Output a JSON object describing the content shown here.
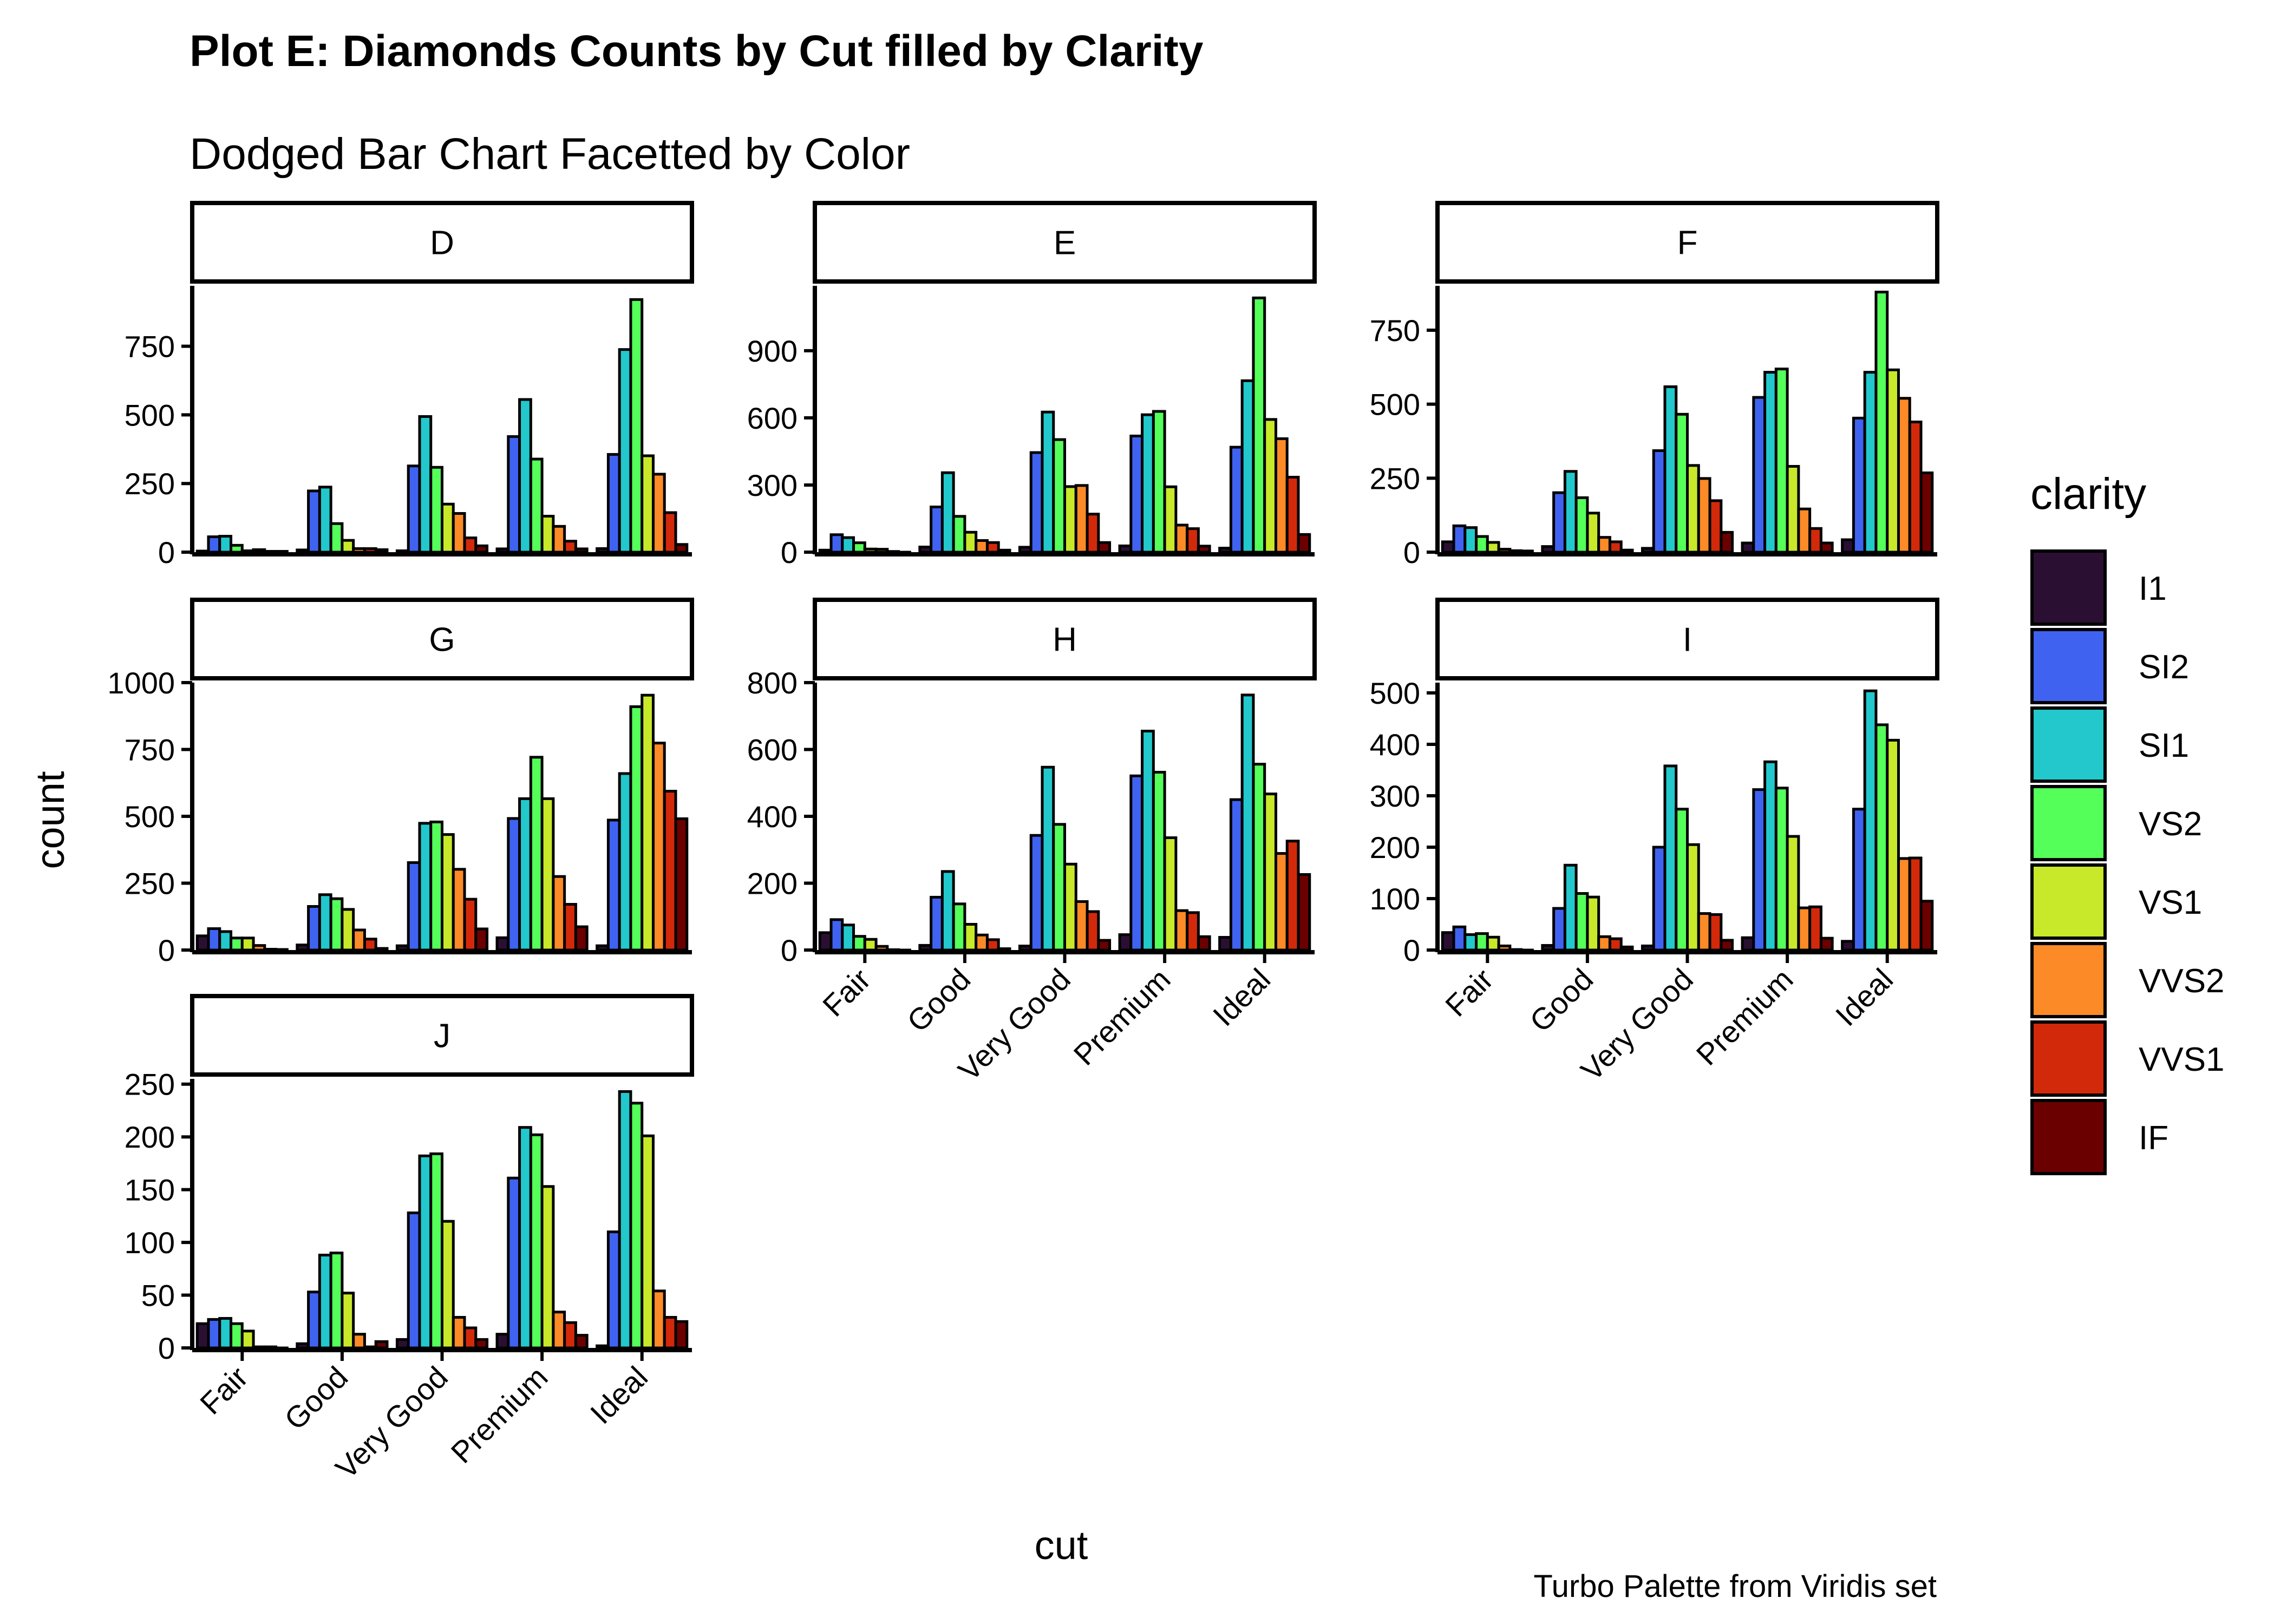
{
  "title": "Plot E: Diamonds Counts by Cut filled by Clarity",
  "subtitle": "Dodged Bar Chart Facetted by Color",
  "caption": "Turbo Palette from Viridis set",
  "chart_data": {
    "type": "bar",
    "xlabel": "cut",
    "ylabel": "count",
    "categories": [
      "Fair",
      "Good",
      "Very Good",
      "Premium",
      "Ideal"
    ],
    "legend": {
      "title": "clarity",
      "position": "right",
      "items": [
        "I1",
        "SI2",
        "SI1",
        "VS2",
        "VS1",
        "VVS2",
        "VVS1",
        "IF"
      ],
      "colors": [
        "#2b0f33",
        "#3f63f0",
        "#22c8cc",
        "#55ff5a",
        "#c8e82a",
        "#fb8a27",
        "#d2290b",
        "#6b0000"
      ]
    },
    "grid": false,
    "facets": [
      {
        "label": "D",
        "ylim": [
          0,
          970
        ],
        "yticks": [
          0,
          250,
          500,
          750
        ],
        "series": [
          [
            4,
            56,
            58,
            25,
            5,
            9,
            3,
            3
          ],
          [
            8,
            223,
            237,
            104,
            43,
            13,
            13,
            9
          ],
          [
            5,
            314,
            494,
            309,
            175,
            141,
            52,
            23
          ],
          [
            12,
            421,
            556,
            339,
            131,
            94,
            40,
            12
          ],
          [
            13,
            356,
            738,
            920,
            351,
            284,
            144,
            28
          ]
        ]
      },
      {
        "label": "E",
        "ylim": [
          0,
          1190
        ],
        "yticks": [
          0,
          300,
          600,
          900
        ],
        "series": [
          [
            9,
            78,
            65,
            42,
            14,
            13,
            3,
            0
          ],
          [
            23,
            202,
            355,
            160,
            89,
            52,
            43,
            9
          ],
          [
            22,
            445,
            626,
            503,
            293,
            298,
            170,
            43
          ],
          [
            28,
            519,
            614,
            629,
            292,
            121,
            105,
            27
          ],
          [
            18,
            469,
            766,
            1136,
            593,
            507,
            335,
            79
          ]
        ]
      },
      {
        "label": "F",
        "ylim": [
          0,
          900
        ],
        "yticks": [
          0,
          250,
          500,
          750
        ],
        "series": [
          [
            35,
            89,
            83,
            53,
            33,
            10,
            5,
            4
          ],
          [
            19,
            201,
            273,
            184,
            132,
            50,
            35,
            7
          ],
          [
            13,
            343,
            559,
            466,
            293,
            249,
            174,
            67
          ],
          [
            31,
            523,
            608,
            619,
            290,
            146,
            80,
            31
          ],
          [
            42,
            453,
            608,
            879,
            616,
            520,
            440,
            268
          ]
        ]
      },
      {
        "label": "G",
        "ylim": [
          0,
          1000
        ],
        "yticks": [
          0,
          250,
          500,
          750,
          1000
        ],
        "series": [
          [
            53,
            80,
            69,
            45,
            45,
            17,
            3,
            2
          ],
          [
            19,
            163,
            207,
            192,
            152,
            75,
            41,
            6
          ],
          [
            16,
            327,
            474,
            479,
            432,
            302,
            190,
            79
          ],
          [
            46,
            492,
            566,
            721,
            566,
            275,
            171,
            87
          ],
          [
            16,
            486,
            660,
            910,
            953,
            774,
            594,
            491
          ]
        ]
      },
      {
        "label": "H",
        "ylim": [
          0,
          800
        ],
        "yticks": [
          0,
          200,
          400,
          600,
          800
        ],
        "series": [
          [
            52,
            91,
            75,
            41,
            32,
            11,
            1,
            0
          ],
          [
            14,
            158,
            235,
            138,
            77,
            45,
            31,
            4
          ],
          [
            12,
            343,
            547,
            376,
            257,
            145,
            115,
            29
          ],
          [
            46,
            521,
            655,
            532,
            336,
            118,
            112,
            40
          ],
          [
            38,
            450,
            763,
            556,
            467,
            289,
            326,
            226
          ]
        ]
      },
      {
        "label": "I",
        "ylim": [
          0,
          520
        ],
        "yticks": [
          0,
          100,
          200,
          300,
          400,
          500
        ],
        "series": [
          [
            34,
            45,
            30,
            32,
            25,
            8,
            1,
            0
          ],
          [
            9,
            81,
            165,
            110,
            103,
            26,
            22,
            6
          ],
          [
            8,
            200,
            358,
            274,
            205,
            71,
            69,
            19
          ],
          [
            24,
            312,
            366,
            315,
            221,
            82,
            84,
            23
          ],
          [
            17,
            274,
            504,
            438,
            408,
            178,
            179,
            95
          ]
        ]
      },
      {
        "label": "J",
        "ylim": [
          0,
          255
        ],
        "yticks": [
          0,
          50,
          100,
          150,
          200,
          250
        ],
        "series": [
          [
            23,
            27,
            28,
            23,
            16,
            1,
            1,
            0
          ],
          [
            4,
            53,
            88,
            90,
            52,
            13,
            1,
            6
          ],
          [
            8,
            128,
            182,
            184,
            120,
            29,
            19,
            8
          ],
          [
            13,
            161,
            209,
            202,
            153,
            34,
            24,
            12
          ],
          [
            2,
            110,
            243,
            232,
            201,
            54,
            29,
            25
          ]
        ]
      }
    ]
  }
}
